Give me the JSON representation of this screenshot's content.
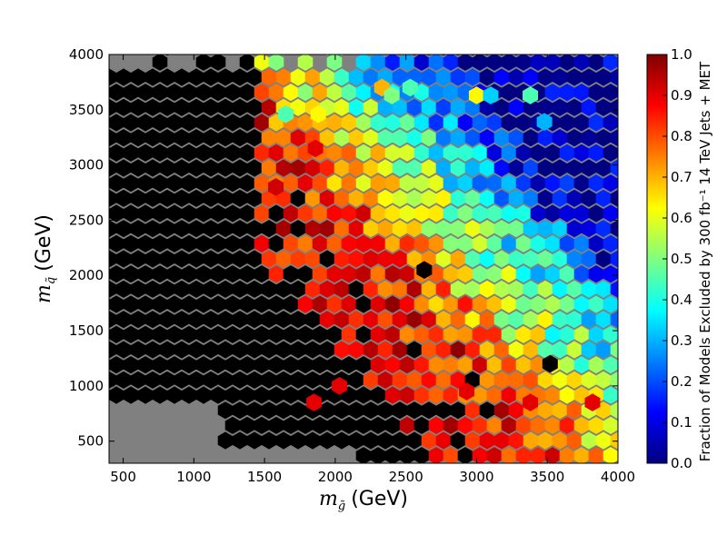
{
  "chart_data": {
    "type": "heatmap",
    "title": "",
    "xlabel": {
      "symbol": "m",
      "sub": "g̃",
      "unit": "(GeV)"
    },
    "ylabel": {
      "symbol": "m",
      "sub": "q̃",
      "unit": "(GeV)"
    },
    "xlim": [
      400,
      4000
    ],
    "ylim": [
      300,
      4000
    ],
    "x_ticks": [
      500,
      1000,
      1500,
      2000,
      2500,
      3000,
      3500,
      4000
    ],
    "y_ticks": [
      500,
      1000,
      1500,
      2000,
      2500,
      3000,
      3500,
      4000
    ],
    "colorbar": {
      "label": "Fraction of Models Excluded by 300 fb⁻¹ 14 TeV Jets + MET",
      "range": [
        0.0,
        1.0
      ],
      "ticks": [
        "0.0",
        "0.1",
        "0.2",
        "0.3",
        "0.4",
        "0.5",
        "0.6",
        "0.7",
        "0.8",
        "0.9",
        "1.0"
      ],
      "colormap": "jet"
    },
    "background_color": "#808080",
    "hexbin_grid": {
      "nx": 35,
      "ny": 27
    },
    "zones": [
      {
        "name": "fully-excluded",
        "value": 1.0,
        "note": "black bins, lower-left and central region"
      },
      {
        "name": "mostly-excluded",
        "value": 0.9,
        "note": "dark red/red band along the diagonal"
      },
      {
        "name": "partially-excluded",
        "value": 0.55,
        "note": "orange/yellow/green towards upper right"
      },
      {
        "name": "not-excluded",
        "value": 0.05,
        "note": "blue bins in the upper-right corner"
      }
    ],
    "highlighted_bins": [
      {
        "x": 1650,
        "y": 3460,
        "value": 0.45
      },
      {
        "x": 1880,
        "y": 3460,
        "value": 0.63
      },
      {
        "x": 1580,
        "y": 2800,
        "value": 0.92
      },
      {
        "x": 1860,
        "y": 3150,
        "value": 0.9
      },
      {
        "x": 2330,
        "y": 3700,
        "value": 0.7
      },
      {
        "x": 2530,
        "y": 3700,
        "value": 0.45
      },
      {
        "x": 2400,
        "y": 3630,
        "value": 0.5
      },
      {
        "x": 3000,
        "y": 3630,
        "value": 0.63
      },
      {
        "x": 3100,
        "y": 3630,
        "value": 0.33
      },
      {
        "x": 3380,
        "y": 3630,
        "value": 0.45
      },
      {
        "x": 3480,
        "y": 3390,
        "value": 0.3
      },
      {
        "x": 1850,
        "y": 850,
        "value": 0.9
      },
      {
        "x": 2030,
        "y": 1000,
        "value": 0.9
      },
      {
        "x": 2930,
        "y": 950,
        "value": 0.9
      },
      {
        "x": 3380,
        "y": 850,
        "value": 0.9
      },
      {
        "x": 3820,
        "y": 850,
        "value": 0.9
      },
      {
        "x": 3520,
        "y": 1200,
        "value": 1.0
      },
      {
        "x": 2630,
        "y": 2050,
        "value": 1.0
      }
    ]
  }
}
